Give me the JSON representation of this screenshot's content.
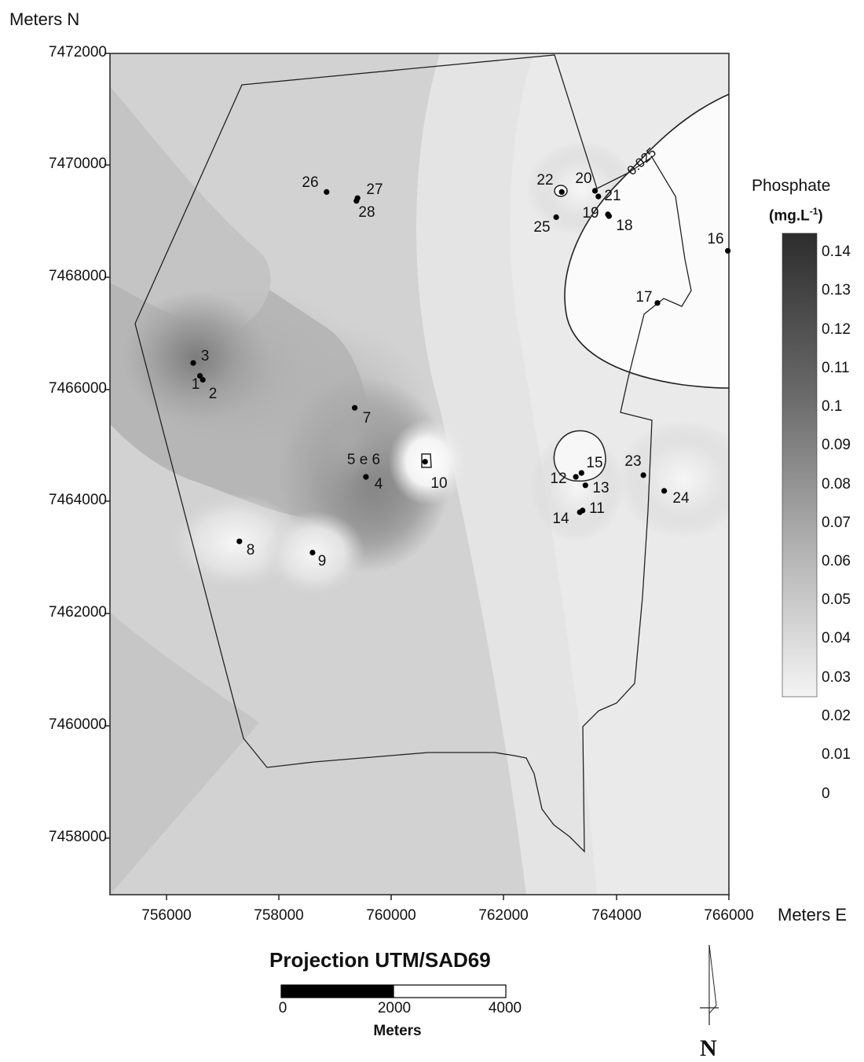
{
  "map": {
    "y_axis_title": "Meters N",
    "x_axis_title": "Meters E",
    "y_ticks": [
      "7472000",
      "7470000",
      "7468000",
      "7466000",
      "7464000",
      "7462000",
      "7460000",
      "7458000"
    ],
    "x_ticks": [
      "756000",
      "758000",
      "760000",
      "762000",
      "764000",
      "766000"
    ],
    "x_range": [
      755000,
      766000
    ],
    "y_range": [
      7457000,
      7472000
    ],
    "contour_label": "0.025",
    "stations": [
      {
        "label": "1",
        "e": 756600,
        "n": 7466250
      },
      {
        "label": "2",
        "e": 756650,
        "n": 7466180
      },
      {
        "label": "3",
        "e": 756480,
        "n": 7466480
      },
      {
        "label": "4",
        "e": 759550,
        "n": 7464450
      },
      {
        "label": "7",
        "e": 759350,
        "n": 7465680
      },
      {
        "label": "8",
        "e": 757300,
        "n": 7463300
      },
      {
        "label": "9",
        "e": 758600,
        "n": 7463100
      },
      {
        "label": "10",
        "e": 760600,
        "n": 7464720
      },
      {
        "label": "11",
        "e": 763400,
        "n": 7463850
      },
      {
        "label": "12",
        "e": 763280,
        "n": 7464450
      },
      {
        "label": "13",
        "e": 763450,
        "n": 7464300
      },
      {
        "label": "14",
        "e": 763350,
        "n": 7463820
      },
      {
        "label": "15",
        "e": 763380,
        "n": 7464520
      },
      {
        "label": "16",
        "e": 765980,
        "n": 7468480
      },
      {
        "label": "17",
        "e": 764730,
        "n": 7467550
      },
      {
        "label": "18",
        "e": 763870,
        "n": 7469100
      },
      {
        "label": "19",
        "e": 763850,
        "n": 7469130
      },
      {
        "label": "20",
        "e": 763620,
        "n": 7469550
      },
      {
        "label": "21",
        "e": 763680,
        "n": 7469450
      },
      {
        "label": "22",
        "e": 763030,
        "n": 7469530
      },
      {
        "label": "23",
        "e": 764480,
        "n": 7464480
      },
      {
        "label": "24",
        "e": 764850,
        "n": 7464200
      },
      {
        "label": "25",
        "e": 762930,
        "n": 7469080
      },
      {
        "label": "26",
        "e": 758850,
        "n": 7469530
      },
      {
        "label": "27",
        "e": 759400,
        "n": 7469420
      },
      {
        "label": "28",
        "e": 759380,
        "n": 7469370
      }
    ],
    "extra_labels": [
      "5 e 6"
    ]
  },
  "legend": {
    "title": "Phosphate",
    "units": "(mg.L",
    "units_superscript": "-1",
    "units_close": ")",
    "ticks": [
      "0.14",
      "0.13",
      "0.12",
      "0.11",
      "0.1",
      "0.09",
      "0.08",
      "0.07",
      "0.06",
      "0.05",
      "0.04",
      "0.03",
      "0.02",
      "0.01",
      "0"
    ]
  },
  "scalebar": {
    "title": "Projection UTM/SAD69",
    "ticks": [
      "0",
      "2000",
      "4000"
    ],
    "unit": "Meters"
  },
  "north_arrow": {
    "letter": "N"
  }
}
